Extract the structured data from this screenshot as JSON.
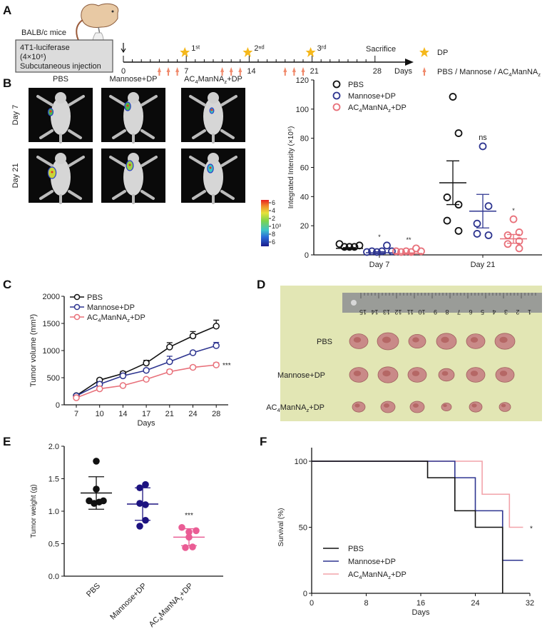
{
  "panel_labels": {
    "a": "A",
    "b": "B",
    "c": "C",
    "d": "D",
    "e": "E",
    "f": "F"
  },
  "schematic": {
    "mouse_strain": "BALB/c mice",
    "box_lines": [
      "4T1-luciferase",
      "(4×10⁶)",
      "Subcutaneous injection"
    ],
    "day_labels": [
      "0",
      "7",
      "14",
      "21",
      "28"
    ],
    "label_days": [
      0,
      7,
      14,
      21,
      28
    ],
    "days_unit": "Days",
    "doses": [
      {
        "day": 7,
        "label": "1ˢᵗ"
      },
      {
        "day": 14,
        "label": "2ⁿᵈ"
      },
      {
        "day": 21,
        "label": "3ʳᵈ"
      }
    ],
    "sacrifice": {
      "day": 28,
      "label": "Sacrifice"
    },
    "injection_days": [
      4,
      5,
      6,
      11,
      12,
      13,
      18,
      19,
      20
    ],
    "legend": [
      {
        "icon": "star-icon",
        "label": "DP",
        "color": "#f5b81c"
      },
      {
        "icon": "arrow-up-icon",
        "label": "PBS / Mannose / AC4ManNAz",
        "color": "#f08a6c"
      }
    ]
  },
  "imaging": {
    "columns": [
      "PBS",
      "Mannose+DP",
      "AC4ManNAz+DP"
    ],
    "rows": [
      "Day 7",
      "Day 21"
    ],
    "colorbar_ticks": [
      "6",
      "4",
      "2",
      "10³",
      "8",
      "6"
    ]
  },
  "photo": {
    "rows": [
      "PBS",
      "Mannose+DP",
      "AC4ManNAz+DP"
    ],
    "ruler_numbers": [
      "15",
      "14",
      "13",
      "12",
      "11",
      "10",
      "9",
      "8",
      "7",
      "6",
      "5",
      "4",
      "3",
      "2",
      "1"
    ],
    "tumors_per_row": [
      6,
      6,
      6
    ]
  },
  "colors": {
    "pbs": "#111111",
    "mannose": "#2e3590",
    "ac4": "#e8707a",
    "e_mannose": "#1c1280",
    "e_ac4": "#ea5d95",
    "f_ac4": "#f2a3aa"
  },
  "chart_data": [
    {
      "id": "B",
      "type": "scatter",
      "ylabel": "Integrated Intensity (×10⁶)",
      "ylim": [
        0,
        120
      ],
      "yticks": [
        "0",
        "20",
        "40",
        "60",
        "80",
        "100",
        "120"
      ],
      "ytick_values": [
        0,
        20,
        40,
        60,
        80,
        100,
        120
      ],
      "categories": [
        "Day 7",
        "Day 21"
      ],
      "legend_position": "top-left",
      "series": [
        {
          "name": "PBS",
          "values": [
            [
              6,
              4,
              4,
              4,
              5
            ],
            [
              107,
              82,
              38,
              33,
              22,
              15
            ]
          ],
          "mean": [
            4.5,
            49.5
          ],
          "sem": [
            0.5,
            15
          ],
          "sig": [
            "",
            ""
          ]
        },
        {
          "name": "Mannose+DP",
          "values": [
            [
              0.5,
              1,
              0.5,
              1,
              5,
              1
            ],
            [
              73,
              32,
              20,
              12,
              13
            ]
          ],
          "mean": [
            1.5,
            30
          ],
          "sem": [
            0.7,
            11.5
          ],
          "sig": [
            "*",
            "ns"
          ]
        },
        {
          "name": "AC4ManNAz+DP",
          "values": [
            [
              1,
              0.5,
              1,
              0.5,
              3,
              1
            ],
            [
              23,
              14,
              12,
              8,
              6,
              3
            ]
          ],
          "mean": [
            1,
            11
          ],
          "sem": [
            0.4,
            3
          ],
          "sig": [
            "**",
            "*"
          ]
        }
      ]
    },
    {
      "id": "C",
      "type": "line",
      "xlabel": "Days",
      "ylabel": "Tumor volume (mm³)",
      "x": [
        "7",
        "10",
        "14",
        "17",
        "21",
        "24",
        "28"
      ],
      "ylim": [
        0,
        2000
      ],
      "yticks": [
        "0",
        "500",
        "1000",
        "1500",
        "2000"
      ],
      "ytick_values": [
        0,
        500,
        1000,
        1500,
        2000
      ],
      "legend_position": "top-left",
      "series": [
        {
          "name": "PBS",
          "values": [
            170,
            455,
            575,
            770,
            1065,
            1270,
            1450
          ],
          "error": [
            20,
            30,
            40,
            50,
            80,
            80,
            110
          ]
        },
        {
          "name": "Mannose+DP",
          "values": [
            165,
            380,
            535,
            635,
            795,
            960,
            1090
          ],
          "error": [
            15,
            30,
            30,
            30,
            100,
            30,
            60
          ]
        },
        {
          "name": "AC4ManNAz+DP",
          "values": [
            130,
            295,
            355,
            470,
            610,
            690,
            735
          ],
          "error": [
            15,
            20,
            20,
            30,
            40,
            35,
            40
          ]
        }
      ],
      "annotation": "***"
    },
    {
      "id": "E",
      "type": "scatter",
      "ylabel": "Tumor weight (g)",
      "ylim": [
        0,
        2
      ],
      "yticks": [
        "0.0",
        "0.5",
        "1.0",
        "1.5",
        "2.0"
      ],
      "ytick_values": [
        0,
        0.5,
        1,
        1.5,
        2
      ],
      "categories": [
        "PBS",
        "Mannose+DP",
        "AC4ManNAz+DP"
      ],
      "series": [
        {
          "name": "PBS",
          "values": [
            1.77,
            1.34,
            1.16,
            1.12,
            1.14,
            1.16
          ],
          "mean": 1.28,
          "sd": 0.25,
          "sig": ""
        },
        {
          "name": "Mannose+DP",
          "values": [
            1.36,
            1.41,
            1.12,
            1.1,
            0.86,
            0.77
          ],
          "mean": 1.11,
          "sd": 0.25,
          "sig": ""
        },
        {
          "name": "AC4ManNAz+DP",
          "values": [
            0.75,
            0.68,
            0.7,
            0.6,
            0.44,
            0.45
          ],
          "mean": 0.6,
          "sd": 0.13,
          "sig": "***"
        }
      ]
    },
    {
      "id": "F",
      "type": "line",
      "subtype": "kaplan-meier",
      "xlabel": "Days",
      "ylabel": "Survival (%)",
      "xlim": [
        0,
        32
      ],
      "ylim": [
        0,
        100
      ],
      "xticks": [
        "0",
        "8",
        "16",
        "24",
        "32"
      ],
      "xtick_values": [
        0,
        8,
        16,
        24,
        32
      ],
      "yticks": [
        "0",
        "50",
        "100"
      ],
      "ytick_values": [
        0,
        50,
        100
      ],
      "legend_position": "bottom-left",
      "series": [
        {
          "name": "PBS",
          "steps": [
            [
              0,
              100
            ],
            [
              17,
              87.5
            ],
            [
              21,
              62.5
            ],
            [
              24,
              50
            ],
            [
              28,
              0
            ]
          ],
          "end": 28
        },
        {
          "name": "Mannose+DP",
          "steps": [
            [
              0,
              100
            ],
            [
              21,
              87.5
            ],
            [
              24,
              62.5
            ],
            [
              28,
              25
            ]
          ],
          "end": 31
        },
        {
          "name": "AC4ManNAz+DP",
          "steps": [
            [
              0,
              100
            ],
            [
              25,
              75
            ],
            [
              29,
              50
            ]
          ],
          "end": 31
        }
      ],
      "annotation": "*"
    }
  ]
}
